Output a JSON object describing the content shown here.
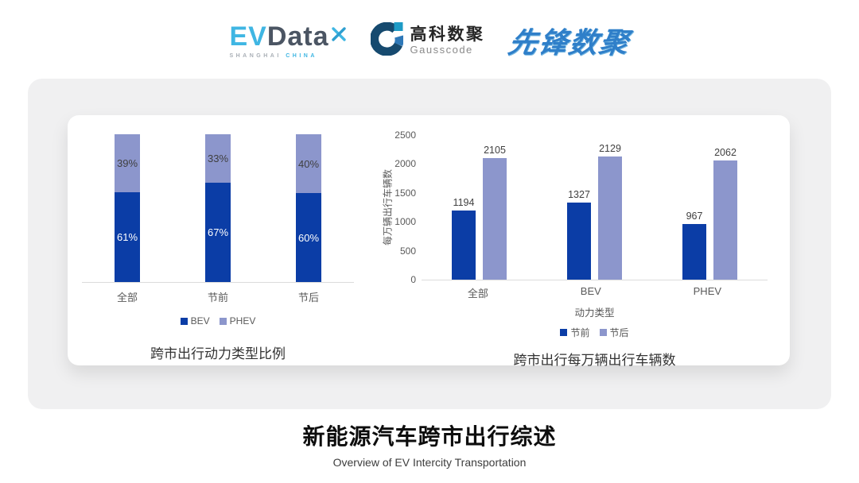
{
  "header": {
    "evdata": {
      "ev": "EV",
      "data": "Data",
      "sub_left": "SHANGHAI",
      "sub_right": "CHINA"
    },
    "gausscode": {
      "cn": "高科数聚",
      "en": "Gausscode"
    },
    "xianfeng": {
      "text": "先锋数聚"
    }
  },
  "colors": {
    "dark_blue": "#0B3DA6",
    "light_blue": "#8C96CC",
    "axis_line": "#DCDCDC",
    "label_gray": "#595959",
    "value_gray": "#404040",
    "card_gray": "#F0F0F1"
  },
  "chart_data": [
    {
      "type": "bar",
      "variant": "stacked",
      "title": "跨市出行动力类型比例",
      "categories": [
        "全部",
        "节前",
        "节后"
      ],
      "series": [
        {
          "name": "BEV",
          "values": [
            61,
            67,
            60
          ],
          "color": "#0B3DA6",
          "label_color": "#FFFFFF"
        },
        {
          "name": "PHEV",
          "values": [
            39,
            33,
            40
          ],
          "color": "#8C96CC",
          "label_color": "#3F3F3F"
        }
      ],
      "value_suffix": "%",
      "ylim": [
        0,
        100
      ],
      "grid": false,
      "legend_position": "bottom"
    },
    {
      "type": "bar",
      "variant": "grouped",
      "title": "跨市出行每万辆出行车辆数",
      "categories": [
        "全部",
        "BEV",
        "PHEV"
      ],
      "series": [
        {
          "name": "节前",
          "values": [
            1194,
            1327,
            967
          ],
          "color": "#0B3DA6"
        },
        {
          "name": "节后",
          "values": [
            2105,
            2129,
            2062
          ],
          "color": "#8C96CC"
        }
      ],
      "xlabel": "动力类型",
      "ylabel": "每万辆出行车辆数",
      "ylim": [
        0,
        2500
      ],
      "yticks": [
        0,
        500,
        1000,
        1500,
        2000,
        2500
      ],
      "grid": false,
      "legend_position": "bottom"
    }
  ],
  "footer": {
    "title": "新能源汽车跨市出行综述",
    "subtitle": "Overview of EV Intercity Transportation"
  }
}
